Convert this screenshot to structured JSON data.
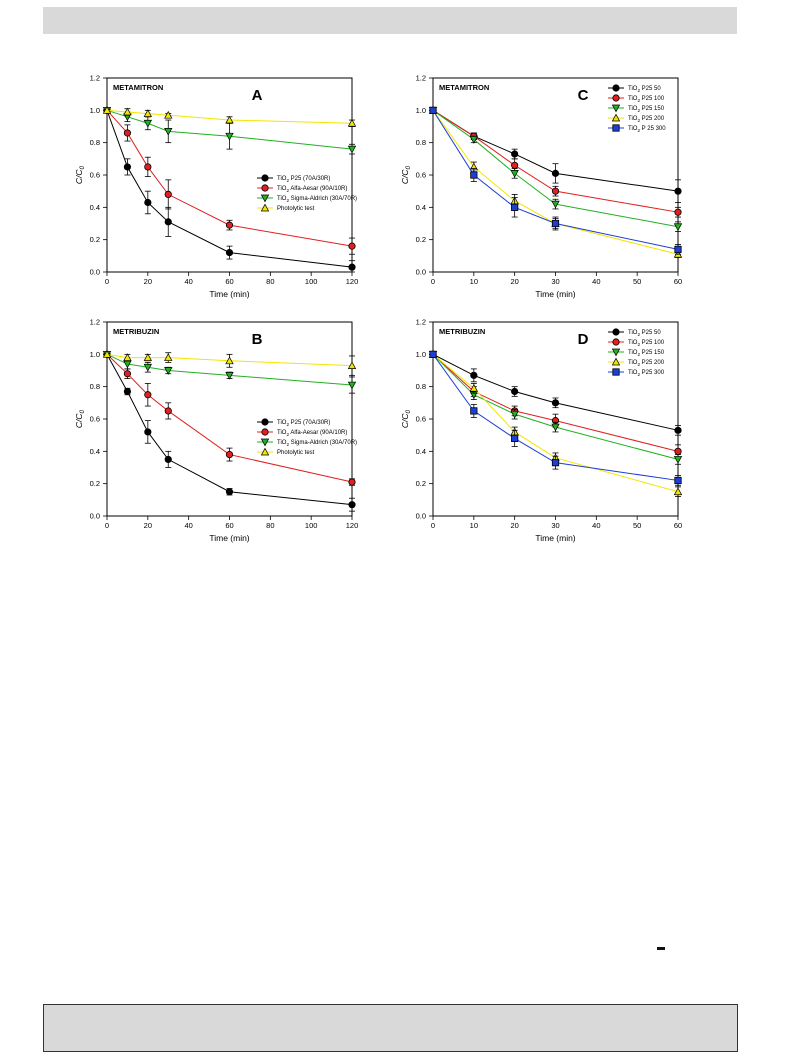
{
  "page": {
    "header_bar": "",
    "footer_box": ""
  },
  "chart_data": [
    {
      "id": "A",
      "type": "line",
      "panel_label": "A",
      "title": "METAMITRON",
      "xlabel": "Time (min)",
      "ylabel": "C/C0",
      "xlim": [
        0,
        120
      ],
      "ylim": [
        0,
        1.2
      ],
      "xticks": [
        0,
        20,
        40,
        60,
        80,
        100,
        120
      ],
      "yticks": [
        0.0,
        0.2,
        0.4,
        0.6,
        0.8,
        1.0,
        1.2
      ],
      "legend": "center-right",
      "series": [
        {
          "name": "TiO2 P25 (70A/30R)",
          "marker": "circle",
          "color": "#000000",
          "x": [
            0,
            10,
            20,
            30,
            60,
            120
          ],
          "y": [
            1.0,
            0.65,
            0.43,
            0.31,
            0.12,
            0.03
          ],
          "err": [
            0.0,
            0.05,
            0.07,
            0.09,
            0.04,
            0.04
          ]
        },
        {
          "name": "TiO2 Alfa-Aesar (90A/10R)",
          "marker": "circle",
          "color": "#e02020",
          "x": [
            0,
            10,
            20,
            30,
            60,
            120
          ],
          "y": [
            1.0,
            0.86,
            0.65,
            0.48,
            0.29,
            0.16
          ],
          "err": [
            0.0,
            0.05,
            0.06,
            0.09,
            0.03,
            0.05
          ]
        },
        {
          "name": "TiO2 Sigma-Aldrich (30A/70R)",
          "marker": "triangle-down",
          "color": "#22b022",
          "x": [
            0,
            10,
            20,
            30,
            60,
            120
          ],
          "y": [
            1.0,
            0.96,
            0.92,
            0.87,
            0.84,
            0.76
          ],
          "err": [
            0.0,
            0.03,
            0.04,
            0.07,
            0.08,
            0.03
          ]
        },
        {
          "name": "Photolytic test",
          "marker": "triangle-up",
          "color": "#f2e600",
          "x": [
            0,
            10,
            20,
            30,
            60,
            120
          ],
          "y": [
            1.0,
            0.99,
            0.98,
            0.97,
            0.94,
            0.92
          ],
          "err": [
            0.0,
            0.02,
            0.02,
            0.01,
            0.02,
            0.02
          ]
        }
      ]
    },
    {
      "id": "C",
      "type": "line",
      "panel_label": "C",
      "title": "METAMITRON",
      "xlabel": "Time (min)",
      "ylabel": "C/C0",
      "xlim": [
        0,
        60
      ],
      "ylim": [
        0,
        1.2
      ],
      "xticks": [
        0,
        10,
        20,
        30,
        40,
        50,
        60
      ],
      "yticks": [
        0.0,
        0.2,
        0.4,
        0.6,
        0.8,
        1.0,
        1.2
      ],
      "legend": "top-right",
      "series": [
        {
          "name": "TiO2 P25 50",
          "marker": "circle",
          "color": "#000000",
          "x": [
            0,
            10,
            20,
            30,
            60
          ],
          "y": [
            1.0,
            0.84,
            0.73,
            0.61,
            0.5
          ],
          "err": [
            0.0,
            0.02,
            0.03,
            0.06,
            0.07
          ]
        },
        {
          "name": "TiO2 P25 100",
          "marker": "circle",
          "color": "#e02020",
          "x": [
            0,
            10,
            20,
            30,
            60
          ],
          "y": [
            1.0,
            0.84,
            0.66,
            0.5,
            0.37
          ],
          "err": [
            0.0,
            0.02,
            0.04,
            0.03,
            0.03
          ]
        },
        {
          "name": "TiO2 P25 150",
          "marker": "triangle-down",
          "color": "#22b022",
          "x": [
            0,
            10,
            20,
            30,
            60
          ],
          "y": [
            1.0,
            0.82,
            0.61,
            0.42,
            0.28
          ],
          "err": [
            0.0,
            0.02,
            0.03,
            0.03,
            0.03
          ]
        },
        {
          "name": "TiO2 P25 200",
          "marker": "triangle-up",
          "color": "#f2e600",
          "x": [
            0,
            10,
            20,
            30,
            60
          ],
          "y": [
            1.0,
            0.65,
            0.44,
            0.3,
            0.11
          ],
          "err": [
            0.0,
            0.03,
            0.04,
            0.03,
            0.02
          ]
        },
        {
          "name": "TiO2 P 25 300",
          "marker": "square",
          "color": "#1c3fd6",
          "x": [
            0,
            10,
            20,
            30,
            60
          ],
          "y": [
            1.0,
            0.6,
            0.4,
            0.3,
            0.14
          ],
          "err": [
            0.0,
            0.04,
            0.06,
            0.04,
            0.03
          ]
        }
      ]
    },
    {
      "id": "B",
      "type": "line",
      "panel_label": "B",
      "title": "METRIBUZIN",
      "xlabel": "Time (min)",
      "ylabel": "C/C0",
      "xlim": [
        0,
        120
      ],
      "ylim": [
        0,
        1.2
      ],
      "xticks": [
        0,
        20,
        40,
        60,
        80,
        100,
        120
      ],
      "yticks": [
        0.0,
        0.2,
        0.4,
        0.6,
        0.8,
        1.0,
        1.2
      ],
      "legend": "center-right",
      "series": [
        {
          "name": "TiO2 P25 (70A/30R)",
          "marker": "circle",
          "color": "#000000",
          "x": [
            0,
            10,
            20,
            30,
            60,
            120
          ],
          "y": [
            1.0,
            0.77,
            0.52,
            0.35,
            0.15,
            0.07
          ],
          "err": [
            0.0,
            0.02,
            0.07,
            0.05,
            0.02,
            0.04
          ]
        },
        {
          "name": "TiO2 Alfa-Aesar (90A/10R)",
          "marker": "circle",
          "color": "#e02020",
          "x": [
            0,
            10,
            20,
            30,
            60,
            120
          ],
          "y": [
            1.0,
            0.88,
            0.75,
            0.65,
            0.38,
            0.21
          ],
          "err": [
            0.0,
            0.03,
            0.07,
            0.05,
            0.04,
            0.02
          ]
        },
        {
          "name": "TiO2 Sigma-Aldrich (30A/70R)",
          "marker": "triangle-down",
          "color": "#22b022",
          "x": [
            0,
            10,
            20,
            30,
            60,
            120
          ],
          "y": [
            1.0,
            0.94,
            0.92,
            0.9,
            0.87,
            0.81
          ],
          "err": [
            0.0,
            0.03,
            0.03,
            0.02,
            0.02,
            0.05
          ]
        },
        {
          "name": "Photolytic test",
          "marker": "triangle-up",
          "color": "#f2e600",
          "x": [
            0,
            10,
            20,
            30,
            60,
            120
          ],
          "y": [
            1.0,
            0.98,
            0.98,
            0.98,
            0.96,
            0.93
          ],
          "err": [
            0.0,
            0.02,
            0.02,
            0.03,
            0.04,
            0.06
          ]
        }
      ]
    },
    {
      "id": "D",
      "type": "line",
      "panel_label": "D",
      "title": "METRIBUZIN",
      "xlabel": "Time (min)",
      "ylabel": "C/C0",
      "xlim": [
        0,
        60
      ],
      "ylim": [
        0,
        1.2
      ],
      "xticks": [
        0,
        10,
        20,
        30,
        40,
        50,
        60
      ],
      "yticks": [
        0.0,
        0.2,
        0.4,
        0.6,
        0.8,
        1.0,
        1.2
      ],
      "legend": "top-right",
      "series": [
        {
          "name": "TiO2 P25 50",
          "marker": "circle",
          "color": "#000000",
          "x": [
            0,
            10,
            20,
            30,
            60
          ],
          "y": [
            1.0,
            0.87,
            0.77,
            0.7,
            0.53
          ],
          "err": [
            0.0,
            0.04,
            0.03,
            0.03,
            0.03
          ]
        },
        {
          "name": "TiO2 P25 100",
          "marker": "circle",
          "color": "#e02020",
          "x": [
            0,
            10,
            20,
            30,
            60
          ],
          "y": [
            1.0,
            0.77,
            0.65,
            0.59,
            0.4
          ],
          "err": [
            0.0,
            0.03,
            0.03,
            0.04,
            0.04
          ]
        },
        {
          "name": "TiO2 P25 150",
          "marker": "triangle-down",
          "color": "#22b022",
          "x": [
            0,
            10,
            20,
            30,
            60
          ],
          "y": [
            1.0,
            0.75,
            0.63,
            0.55,
            0.35
          ],
          "err": [
            0.0,
            0.03,
            0.03,
            0.03,
            0.03
          ]
        },
        {
          "name": "TiO2 P25 200",
          "marker": "triangle-up",
          "color": "#f2e600",
          "x": [
            0,
            10,
            20,
            30,
            60
          ],
          "y": [
            1.0,
            0.79,
            0.52,
            0.36,
            0.15
          ],
          "err": [
            0.0,
            0.03,
            0.03,
            0.03,
            0.03
          ]
        },
        {
          "name": "TiO2 P25 300",
          "marker": "square",
          "color": "#1c3fd6",
          "x": [
            0,
            10,
            20,
            30,
            60
          ],
          "y": [
            1.0,
            0.65,
            0.48,
            0.33,
            0.22
          ],
          "err": [
            0.0,
            0.04,
            0.05,
            0.04,
            0.03
          ]
        }
      ]
    }
  ]
}
